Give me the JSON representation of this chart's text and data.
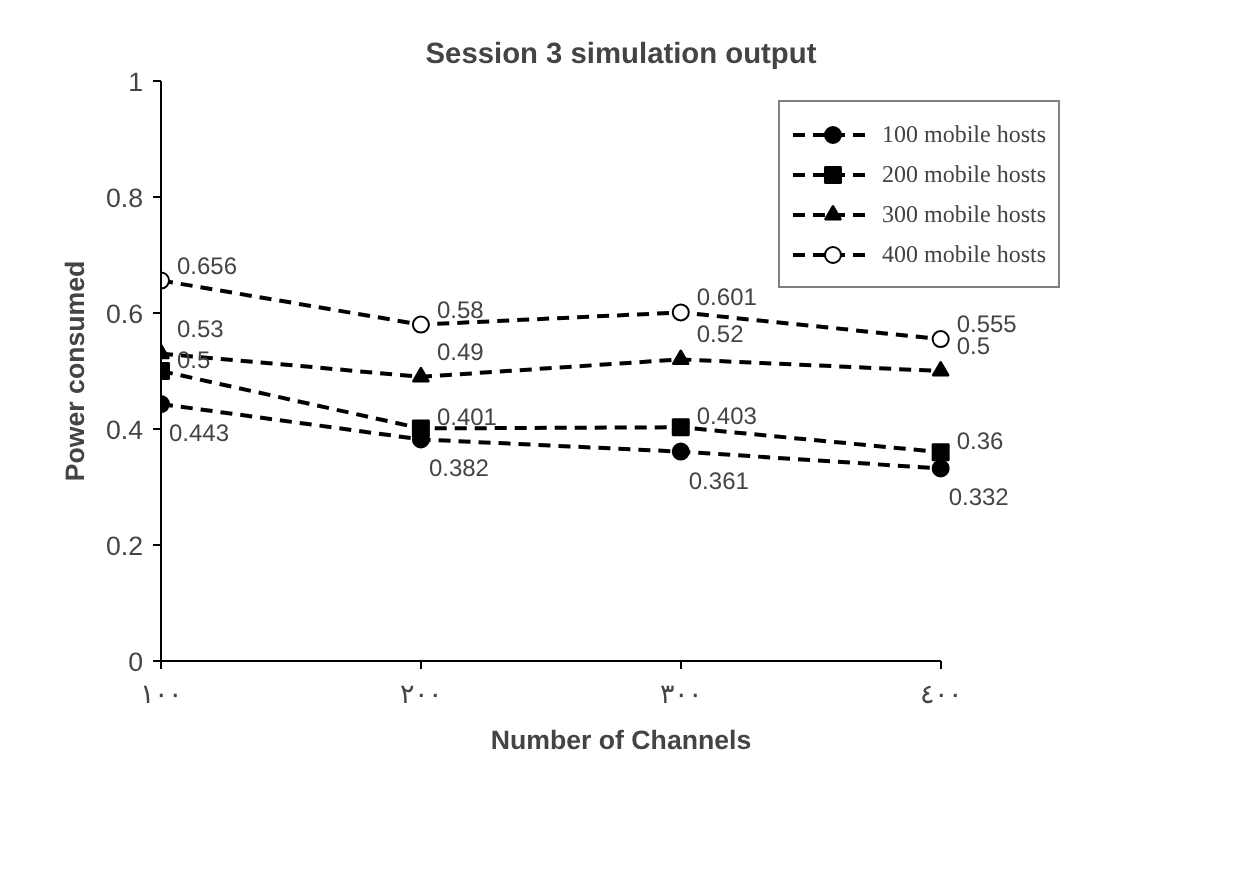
{
  "chart_data": {
    "type": "line",
    "title": "Session 3 simulation output",
    "xlabel": "Number of Channels",
    "ylabel": "Power consumed",
    "categories": [
      "١٠٠",
      "٢٠٠",
      "٣٠٠",
      "٤٠٠"
    ],
    "series": [
      {
        "name": "100 mobile hosts",
        "color": "#000000",
        "marker": "circle",
        "values": [
          0.443,
          0.382,
          0.361,
          0.332
        ]
      },
      {
        "name": "200 mobile hosts",
        "color": "#000000",
        "marker": "square",
        "values": [
          0.5,
          0.401,
          0.403,
          0.36
        ]
      },
      {
        "name": "300 mobile hosts",
        "color": "#000000",
        "marker": "triangle",
        "values": [
          0.53,
          0.49,
          0.52,
          0.5
        ]
      },
      {
        "name": "400 mobile hosts",
        "color": "#000000",
        "marker": "circle",
        "values": [
          0.656,
          0.58,
          0.601,
          0.555
        ]
      }
    ],
    "ylim": [
      0,
      1
    ],
    "yticks": [
      0,
      0.2,
      0.4,
      0.6,
      0.8,
      1
    ],
    "line_style": "dashed",
    "data_labels": true,
    "legend": "top right",
    "grid": false
  }
}
